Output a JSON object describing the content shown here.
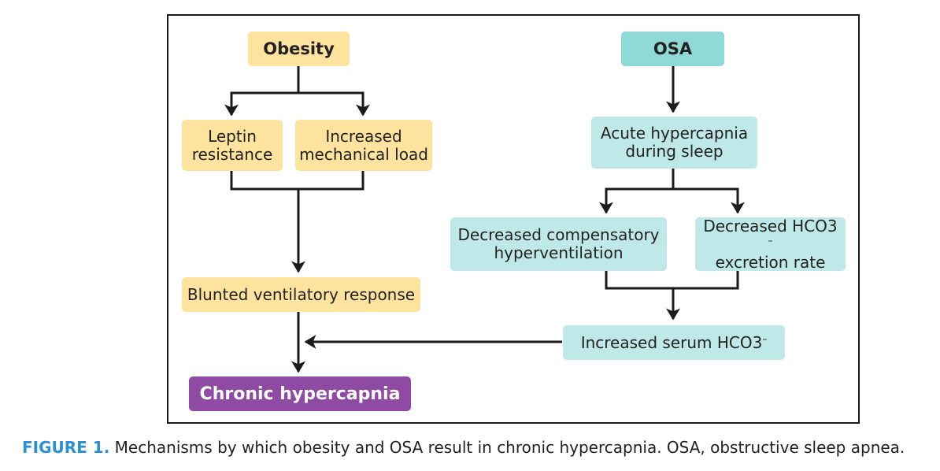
{
  "nodes": {
    "obesity": "Obesity",
    "osa": "OSA",
    "leptin": [
      "Leptin",
      "resistance"
    ],
    "mechanical": [
      "Increased",
      "mechanical load"
    ],
    "acute": [
      "Acute hypercapnia",
      "during sleep"
    ],
    "decreased_comp": [
      "Decreased compensatory",
      "hyperventilation"
    ],
    "decreased_hco3": {
      "line1": "Decreased HCO3",
      "sup": "–",
      "line2": "excretion rate"
    },
    "blunted": "Blunted ventilatory response",
    "serum": {
      "text": "Increased serum HCO3",
      "sup": "–"
    },
    "chronic": "Chronic hypercapnia"
  },
  "caption": {
    "label": "FIGURE 1.",
    "text": " Mechanisms by which obesity and OSA result in chronic hypercapnia. OSA, obstructive sleep apnea."
  },
  "colors": {
    "obesity_path": "#fde39e",
    "osa_header": "#8fd9d6",
    "osa_path": "#bfe9e8",
    "outcome": "#8f4aa3",
    "caption_label": "#2b8fd6",
    "frame": "#1b1b1b"
  }
}
